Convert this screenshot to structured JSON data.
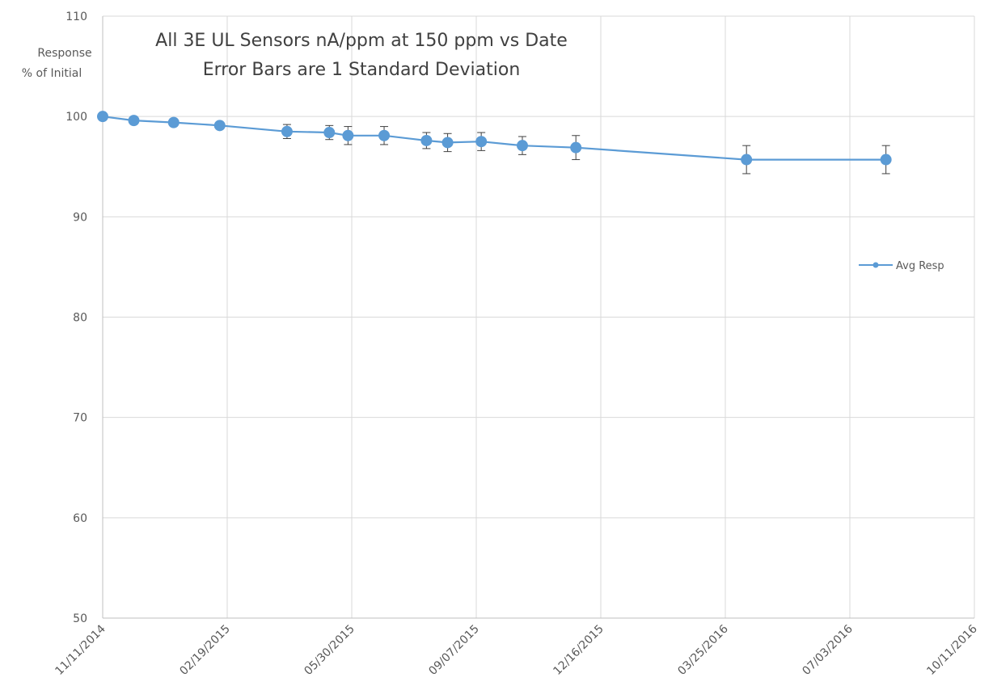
{
  "chart_data": {
    "type": "line",
    "title": "All 3E UL Sensors nA/ppm at 150 ppm vs Date",
    "subtitle": "Error Bars are 1 Standard Deviation",
    "ylabel_line1": "Response",
    "ylabel_line2": "% of Initial",
    "ylim": [
      50,
      110
    ],
    "y_ticks": [
      "50",
      "60",
      "70",
      "80",
      "90",
      "100",
      "110"
    ],
    "x_ticks": [
      "11/11/2014",
      "02/19/2015",
      "05/30/2015",
      "09/07/2015",
      "12/16/2015",
      "03/25/2016",
      "07/03/2016",
      "10/11/2016"
    ],
    "x_range": [
      "2014-11-11",
      "2016-10-11"
    ],
    "grid": true,
    "legend_position": "right",
    "series": [
      {
        "name": "Avg Resp",
        "color": "#5b9bd5",
        "x": [
          "2014-11-11",
          "2014-12-06",
          "2015-01-07",
          "2015-02-13",
          "2015-04-08",
          "2015-05-12",
          "2015-05-27",
          "2015-06-25",
          "2015-07-29",
          "2015-08-15",
          "2015-09-11",
          "2015-10-14",
          "2015-11-26",
          "2016-04-11",
          "2016-08-01"
        ],
        "y": [
          100.0,
          99.6,
          99.4,
          99.1,
          98.5,
          98.4,
          98.1,
          98.1,
          97.6,
          97.4,
          97.5,
          97.1,
          96.9,
          95.7,
          95.7
        ],
        "err": [
          0.15,
          0.2,
          0.2,
          0.3,
          0.7,
          0.7,
          0.9,
          0.9,
          0.8,
          0.9,
          0.9,
          0.9,
          1.2,
          1.4,
          1.4
        ]
      }
    ]
  }
}
